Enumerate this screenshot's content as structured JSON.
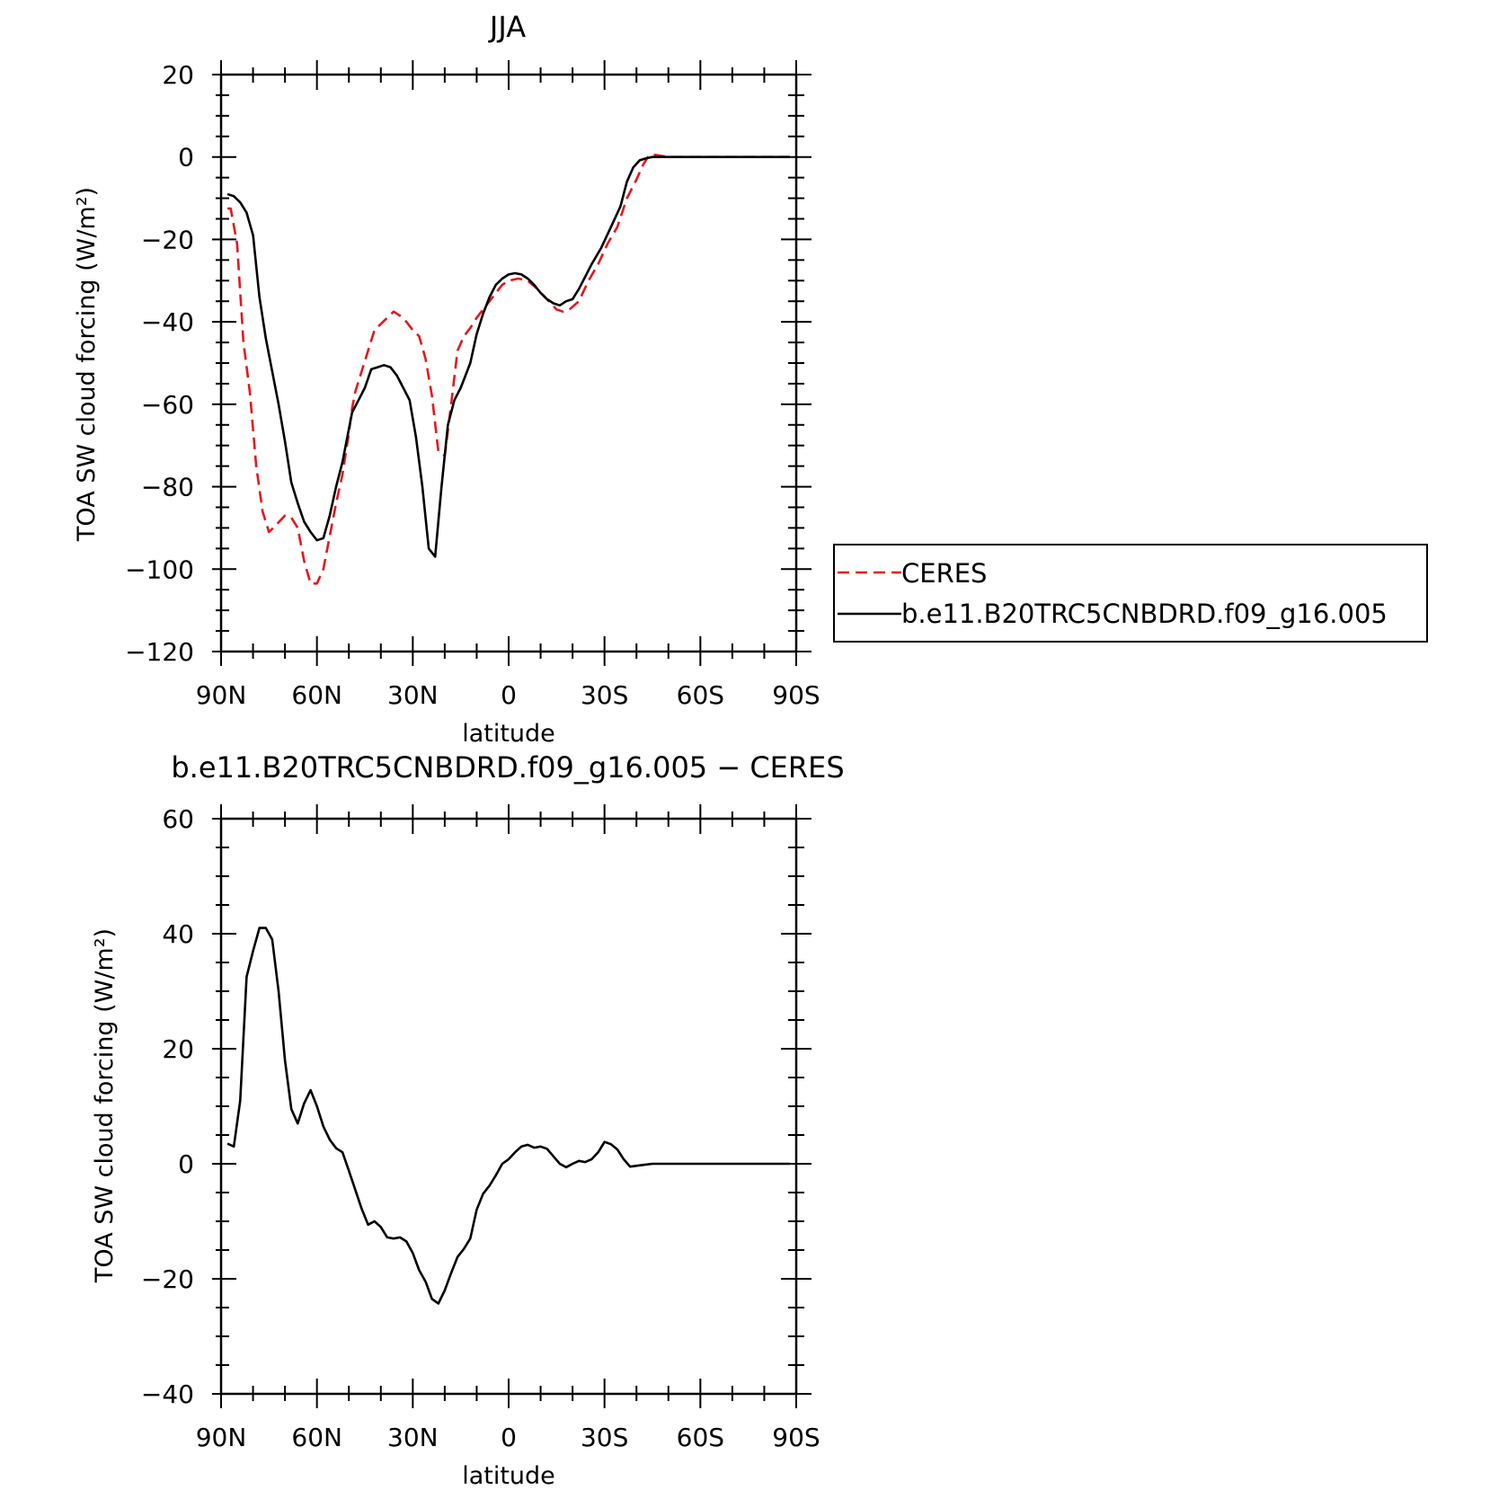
{
  "chart_data": [
    {
      "type": "line",
      "title": "JJA",
      "xlabel": "latitude",
      "ylabel": "TOA SW cloud forcing (W/m²)",
      "xlim": [
        90,
        -90
      ],
      "ylim": [
        -120,
        20
      ],
      "x_tick_values": [
        90,
        60,
        30,
        0,
        -30,
        -60,
        -90
      ],
      "x_tick_labels": [
        "90N",
        "60N",
        "30N",
        "0",
        "30S",
        "60S",
        "90S"
      ],
      "y_tick_values": [
        20,
        0,
        -20,
        -40,
        -60,
        -80,
        -100,
        -120
      ],
      "y_tick_labels": [
        "20",
        "0",
        "−20",
        "−40",
        "−60",
        "−80",
        "−100",
        "−120"
      ],
      "legend": {
        "placement": "right"
      },
      "series": [
        {
          "name": "CERES",
          "color": "#e8161c",
          "style": "dashed",
          "points": [
            [
              88,
              -12.5
            ],
            [
              87,
              -12.5
            ],
            [
              85,
              -21
            ],
            [
              83,
              -45
            ],
            [
              81,
              -57
            ],
            [
              79,
              -75
            ],
            [
              77,
              -86
            ],
            [
              75,
              -91
            ],
            [
              73,
              -89.5
            ],
            [
              70,
              -87
            ],
            [
              68,
              -87.5
            ],
            [
              66,
              -90
            ],
            [
              64,
              -98
            ],
            [
              62,
              -103.5
            ],
            [
              60,
              -103.5
            ],
            [
              58,
              -100
            ],
            [
              56,
              -92
            ],
            [
              54,
              -84
            ],
            [
              52,
              -77
            ],
            [
              50,
              -67
            ],
            [
              49,
              -61
            ],
            [
              48,
              -57
            ],
            [
              46,
              -52
            ],
            [
              44,
              -47
            ],
            [
              42,
              -42
            ],
            [
              40,
              -40.5
            ],
            [
              38,
              -39
            ],
            [
              36,
              -37.5
            ],
            [
              34,
              -38.5
            ],
            [
              32,
              -40
            ],
            [
              30,
              -42
            ],
            [
              28,
              -43.5
            ],
            [
              26,
              -49
            ],
            [
              24,
              -58
            ],
            [
              22,
              -71.5
            ],
            [
              20,
              -72.5
            ],
            [
              18,
              -60
            ],
            [
              16,
              -47
            ],
            [
              14,
              -43.5
            ],
            [
              12,
              -41.5
            ],
            [
              10,
              -39
            ],
            [
              8,
              -37
            ],
            [
              6,
              -35
            ],
            [
              4,
              -33
            ],
            [
              2,
              -31
            ],
            [
              0,
              -30
            ],
            [
              -3,
              -29.5
            ],
            [
              -6,
              -30
            ],
            [
              -9,
              -32
            ],
            [
              -12,
              -34.5
            ],
            [
              -15,
              -37
            ],
            [
              -17,
              -37.5
            ],
            [
              -19,
              -37
            ],
            [
              -22,
              -35
            ],
            [
              -25,
              -30
            ],
            [
              -28,
              -26
            ],
            [
              -31,
              -21
            ],
            [
              -34,
              -17
            ],
            [
              -37,
              -10
            ],
            [
              -40,
              -5.5
            ],
            [
              -42,
              -2
            ],
            [
              -44,
              0.5
            ],
            [
              -46,
              0.5
            ],
            [
              -50,
              0
            ],
            [
              -55,
              0
            ],
            [
              -60,
              0
            ],
            [
              -65,
              0
            ],
            [
              -70,
              0
            ],
            [
              -75,
              0
            ],
            [
              -80,
              0
            ],
            [
              -85,
              0
            ],
            [
              -88,
              0
            ]
          ]
        },
        {
          "name": "b.e11.B20TRC5CNBDRD.f09_g16.005",
          "color": "#000000",
          "style": "solid",
          "points": [
            [
              88,
              -9
            ],
            [
              86,
              -9.5
            ],
            [
              84,
              -11
            ],
            [
              82,
              -13.5
            ],
            [
              80,
              -19
            ],
            [
              78,
              -34
            ],
            [
              76,
              -44
            ],
            [
              74,
              -52
            ],
            [
              72,
              -60
            ],
            [
              70,
              -69
            ],
            [
              68,
              -79
            ],
            [
              66,
              -84
            ],
            [
              64,
              -88.5
            ],
            [
              62,
              -91
            ],
            [
              60,
              -93
            ],
            [
              58,
              -92.5
            ],
            [
              56,
              -87
            ],
            [
              54,
              -80
            ],
            [
              52,
              -74
            ],
            [
              50,
              -66
            ],
            [
              49,
              -62
            ],
            [
              47,
              -59
            ],
            [
              45,
              -56
            ],
            [
              43,
              -51.5
            ],
            [
              41,
              -51
            ],
            [
              39,
              -50.5
            ],
            [
              37,
              -51
            ],
            [
              35,
              -53
            ],
            [
              33,
              -56
            ],
            [
              31,
              -59
            ],
            [
              29,
              -68
            ],
            [
              27,
              -80
            ],
            [
              25,
              -95
            ],
            [
              23,
              -97
            ],
            [
              21,
              -80
            ],
            [
              19,
              -65
            ],
            [
              17,
              -59
            ],
            [
              15,
              -56
            ],
            [
              12,
              -50
            ],
            [
              10,
              -43
            ],
            [
              8,
              -38
            ],
            [
              6,
              -34
            ],
            [
              4,
              -31
            ],
            [
              2,
              -29.5
            ],
            [
              0,
              -28.5
            ],
            [
              -2,
              -28.2
            ],
            [
              -4,
              -28.5
            ],
            [
              -6,
              -29.5
            ],
            [
              -8,
              -31
            ],
            [
              -10,
              -33
            ],
            [
              -12,
              -34.5
            ],
            [
              -14,
              -35.5
            ],
            [
              -16,
              -36
            ],
            [
              -18,
              -35
            ],
            [
              -20,
              -34.5
            ],
            [
              -22,
              -32
            ],
            [
              -24,
              -29
            ],
            [
              -26,
              -26
            ],
            [
              -29,
              -22
            ],
            [
              -32,
              -17
            ],
            [
              -35,
              -12
            ],
            [
              -37,
              -6
            ],
            [
              -39,
              -2.5
            ],
            [
              -41,
              -0.8
            ],
            [
              -43,
              -0.3
            ],
            [
              -45,
              0
            ],
            [
              -50,
              0
            ],
            [
              -55,
              0
            ],
            [
              -60,
              0
            ],
            [
              -65,
              0
            ],
            [
              -70,
              0
            ],
            [
              -75,
              0
            ],
            [
              -80,
              0
            ],
            [
              -85,
              0
            ],
            [
              -88,
              0
            ]
          ]
        }
      ]
    },
    {
      "type": "line",
      "title": "b.e11.B20TRC5CNBDRD.f09_g16.005 − CERES",
      "xlabel": "latitude",
      "ylabel": "TOA SW cloud forcing (W/m²)",
      "xlim": [
        90,
        -90
      ],
      "ylim": [
        -40,
        60
      ],
      "x_tick_values": [
        90,
        60,
        30,
        0,
        -30,
        -60,
        -90
      ],
      "x_tick_labels": [
        "90N",
        "60N",
        "30N",
        "0",
        "30S",
        "60S",
        "90S"
      ],
      "y_tick_values": [
        60,
        40,
        20,
        0,
        -20,
        -40
      ],
      "y_tick_labels": [
        "60",
        "40",
        "20",
        "0",
        "−20",
        "−40"
      ],
      "series": [
        {
          "color": "#000000",
          "style": "solid",
          "points": [
            [
              88,
              3.5
            ],
            [
              86,
              3
            ],
            [
              84,
              11
            ],
            [
              82,
              32.5
            ],
            [
              80,
              37
            ],
            [
              78,
              41
            ],
            [
              76,
              41
            ],
            [
              74,
              39
            ],
            [
              72,
              30
            ],
            [
              70,
              18
            ],
            [
              68,
              9.5
            ],
            [
              66,
              7
            ],
            [
              64,
              10.5
            ],
            [
              62,
              12.8
            ],
            [
              60,
              10
            ],
            [
              58,
              6.5
            ],
            [
              56,
              4.2
            ],
            [
              54,
              2.7
            ],
            [
              52,
              2
            ],
            [
              50,
              -1.2
            ],
            [
              48,
              -4.5
            ],
            [
              46,
              -7.8
            ],
            [
              44,
              -10.6
            ],
            [
              42,
              -10
            ],
            [
              40,
              -11
            ],
            [
              38,
              -12.8
            ],
            [
              36,
              -13
            ],
            [
              34,
              -12.8
            ],
            [
              32,
              -13.5
            ],
            [
              30,
              -15.5
            ],
            [
              28,
              -18.5
            ],
            [
              26,
              -20.5
            ],
            [
              24,
              -23.5
            ],
            [
              22,
              -24.3
            ],
            [
              20,
              -22
            ],
            [
              18,
              -19
            ],
            [
              16,
              -16.2
            ],
            [
              14,
              -14.8
            ],
            [
              12,
              -13
            ],
            [
              10,
              -8
            ],
            [
              8,
              -5.2
            ],
            [
              6,
              -3.8
            ],
            [
              4,
              -2
            ],
            [
              2,
              0
            ],
            [
              0,
              0.8
            ],
            [
              -2,
              2
            ],
            [
              -4,
              3
            ],
            [
              -6,
              3.3
            ],
            [
              -8,
              2.8
            ],
            [
              -10,
              3
            ],
            [
              -12,
              2.6
            ],
            [
              -14,
              1.3
            ],
            [
              -16,
              0
            ],
            [
              -18,
              -0.6
            ],
            [
              -20,
              0
            ],
            [
              -22,
              0.5
            ],
            [
              -24,
              0.3
            ],
            [
              -26,
              0.8
            ],
            [
              -28,
              2
            ],
            [
              -30,
              3.8
            ],
            [
              -32,
              3.4
            ],
            [
              -34,
              2.5
            ],
            [
              -36,
              0.8
            ],
            [
              -38,
              -0.5
            ],
            [
              -42,
              -0.2
            ],
            [
              -45,
              0
            ],
            [
              -50,
              0
            ],
            [
              -55,
              0
            ],
            [
              -60,
              0
            ],
            [
              -65,
              0
            ],
            [
              -70,
              0
            ],
            [
              -75,
              0
            ],
            [
              -80,
              0
            ],
            [
              -85,
              0
            ],
            [
              -88,
              0
            ]
          ]
        }
      ]
    }
  ]
}
